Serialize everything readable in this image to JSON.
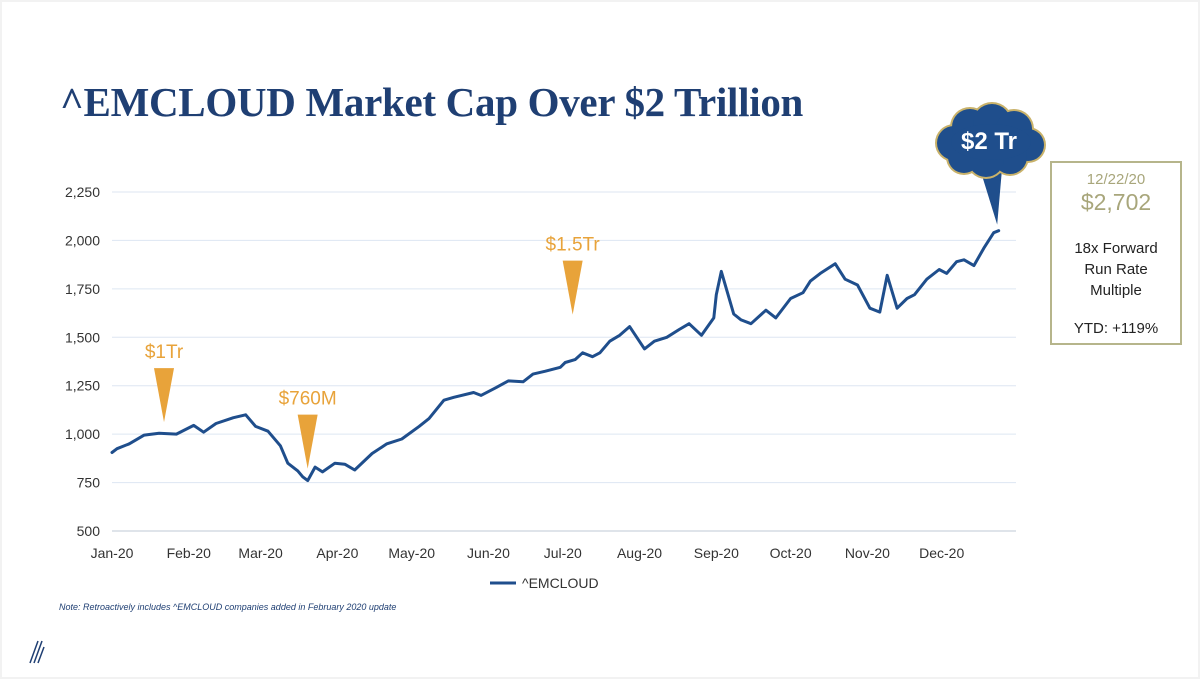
{
  "slide": {
    "title": "^EMCLOUD Market Cap Over $2 Trillion",
    "note": "Note: Retroactively includes ^EMCLOUD companies added in February 2020 update",
    "logo_icon": "stripes-logo-icon"
  },
  "info_box": {
    "date": "12/22/20",
    "value": "$2,702",
    "description_lines": [
      "18x Forward",
      "Run Rate",
      "Multiple"
    ],
    "ytd": "YTD: +119%"
  },
  "colors": {
    "line": "#1f4e8c",
    "title": "#1f3f73",
    "annotation": "#e8a33a",
    "callout_cloud": "#1f4e8c",
    "callout_outline": "#c9b26a",
    "info_border": "#b6b58b",
    "info_accent": "#a8a67b",
    "grid": "#dde6f2"
  },
  "chart_data": {
    "type": "line",
    "title": "",
    "xlabel": "",
    "ylabel": "",
    "ylim": [
      500,
      2250
    ],
    "y_ticks": [
      500,
      750,
      1000,
      1250,
      1500,
      1750,
      2000,
      2250
    ],
    "y_tick_labels": [
      "500",
      "750",
      "1,000",
      "1,250",
      "1,500",
      "1,750",
      "2,000",
      "2,250"
    ],
    "x_tick_labels": [
      "Jan-20",
      "Feb-20",
      "Mar-20",
      "Apr-20",
      "May-20",
      "Jun-20",
      "Jul-20",
      "Aug-20",
      "Sep-20",
      "Oct-20",
      "Nov-20",
      "Dec-20"
    ],
    "x_domain": [
      "2020-01-01",
      "2020-12-31"
    ],
    "grid": true,
    "legend_position": "bottom-center",
    "series": [
      {
        "name": "^EMCLOUD",
        "x": [
          "2020-01-01",
          "2020-01-03",
          "2020-01-08",
          "2020-01-14",
          "2020-01-20",
          "2020-01-27",
          "2020-02-03",
          "2020-02-07",
          "2020-02-12",
          "2020-02-19",
          "2020-02-24",
          "2020-02-28",
          "2020-03-04",
          "2020-03-09",
          "2020-03-12",
          "2020-03-16",
          "2020-03-18",
          "2020-03-20",
          "2020-03-23",
          "2020-03-26",
          "2020-03-31",
          "2020-04-04",
          "2020-04-08",
          "2020-04-15",
          "2020-04-21",
          "2020-04-27",
          "2020-05-04",
          "2020-05-08",
          "2020-05-14",
          "2020-05-18",
          "2020-05-26",
          "2020-05-29",
          "2020-06-04",
          "2020-06-09",
          "2020-06-15",
          "2020-06-19",
          "2020-06-24",
          "2020-06-30",
          "2020-07-02",
          "2020-07-06",
          "2020-07-09",
          "2020-07-13",
          "2020-07-16",
          "2020-07-20",
          "2020-07-24",
          "2020-07-28",
          "2020-08-03",
          "2020-08-07",
          "2020-08-12",
          "2020-08-17",
          "2020-08-21",
          "2020-08-26",
          "2020-08-31",
          "2020-09-01",
          "2020-09-03",
          "2020-09-08",
          "2020-09-11",
          "2020-09-15",
          "2020-09-21",
          "2020-09-25",
          "2020-10-01",
          "2020-10-06",
          "2020-10-09",
          "2020-10-13",
          "2020-10-19",
          "2020-10-23",
          "2020-10-28",
          "2020-11-02",
          "2020-11-06",
          "2020-11-09",
          "2020-11-13",
          "2020-11-17",
          "2020-11-20",
          "2020-11-25",
          "2020-11-30",
          "2020-12-03",
          "2020-12-07",
          "2020-12-10",
          "2020-12-14",
          "2020-12-18",
          "2020-12-22",
          "2020-12-24"
        ],
        "values": [
          905,
          925,
          950,
          995,
          1005,
          1000,
          1045,
          1010,
          1055,
          1085,
          1100,
          1040,
          1015,
          940,
          850,
          810,
          780,
          760,
          830,
          805,
          850,
          845,
          815,
          900,
          950,
          975,
          1040,
          1080,
          1175,
          1190,
          1215,
          1200,
          1240,
          1275,
          1270,
          1310,
          1325,
          1345,
          1370,
          1385,
          1420,
          1400,
          1420,
          1480,
          1510,
          1555,
          1440,
          1480,
          1500,
          1540,
          1570,
          1510,
          1600,
          1720,
          1840,
          1620,
          1590,
          1570,
          1640,
          1600,
          1700,
          1730,
          1790,
          1830,
          1880,
          1800,
          1770,
          1650,
          1630,
          1820,
          1650,
          1700,
          1720,
          1800,
          1850,
          1830,
          1890,
          1900,
          1870,
          1960,
          2040,
          2050
        ]
      }
    ],
    "annotations": [
      {
        "label": "$1Tr",
        "x": "2020-01-22",
        "y": 1000
      },
      {
        "label": "$760M",
        "x": "2020-03-20",
        "y": 760
      },
      {
        "label": "$1.5Tr",
        "x": "2020-07-05",
        "y": 1555
      },
      {
        "label": "$2 Tr",
        "x": "2020-12-23",
        "y": 2040,
        "style": "cloud"
      }
    ],
    "legend": [
      {
        "name": "^EMCLOUD"
      }
    ]
  }
}
